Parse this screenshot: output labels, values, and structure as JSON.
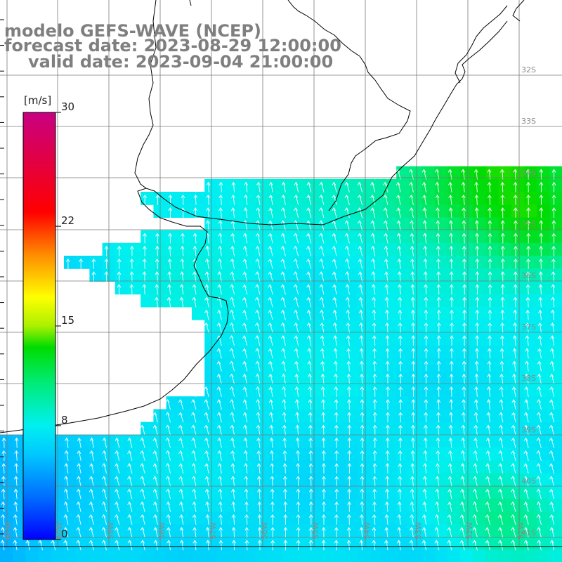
{
  "title": {
    "line1": "modelo GEFS-WAVE (NCEP)",
    "line2": "forecast date: 2023-08-29 12:00:00",
    "line3": "valid date: 2023-09-04 21:00:00"
  },
  "legend": {
    "unit": "[m/s]",
    "ticks": [
      "30",
      "22",
      "15",
      "8",
      "0"
    ],
    "tick_values": [
      30,
      22,
      15,
      8,
      0
    ],
    "range": [
      0,
      30
    ]
  },
  "axes": {
    "lat_labels": [
      "32S",
      "33S",
      "34S",
      "35S",
      "36S",
      "37S",
      "38S",
      "39S",
      "40S",
      "41S"
    ],
    "lat_values": [
      -32,
      -33,
      -34,
      -35,
      -36,
      -37,
      -38,
      -39,
      -40,
      -41
    ],
    "lon_labels": [
      "61W",
      "60W",
      "59W",
      "58W",
      "57W",
      "56W",
      "55W",
      "54W",
      "53W",
      "52W",
      "51W"
    ],
    "lon_values": [
      -61,
      -60,
      -59,
      -58,
      -57,
      -56,
      -55,
      -54,
      -53,
      -52,
      -51
    ]
  },
  "field": {
    "variable": "wind speed",
    "arrow_direction": "north / north-northwest",
    "low_color": "#0000ff",
    "high_color": "#c0007f"
  },
  "colors": {
    "title": "#7f7f7f",
    "land": "#ffffff",
    "coast": "#000000",
    "grid": "#777777"
  }
}
